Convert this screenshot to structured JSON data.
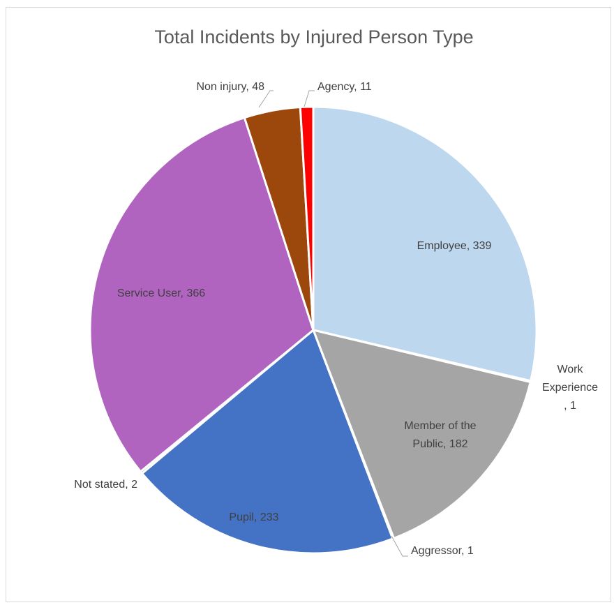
{
  "chart_data": {
    "type": "pie",
    "title": "Total Incidents by Injured Person Type",
    "slices": [
      {
        "name": "Employee",
        "value": 339,
        "color": "#BDD7EE",
        "label_lines": [
          "Employee, 339"
        ]
      },
      {
        "name": "Work Experience",
        "value": 1,
        "color": "#ED7D31",
        "label_lines": [
          "Work",
          "Experience",
          ", 1"
        ]
      },
      {
        "name": "Member of the Public",
        "value": 182,
        "color": "#A5A5A5",
        "label_lines": [
          "Member of the",
          "Public, 182"
        ]
      },
      {
        "name": "Aggressor",
        "value": 1,
        "color": "#FFC000",
        "label_lines": [
          "Aggressor, 1"
        ]
      },
      {
        "name": "Pupil",
        "value": 233,
        "color": "#4472C4",
        "label_lines": [
          "Pupil, 233"
        ]
      },
      {
        "name": "Not stated",
        "value": 2,
        "color": "#70AD47",
        "label_lines": [
          "Not stated, 2"
        ]
      },
      {
        "name": "Service User",
        "value": 366,
        "color": "#B064C0",
        "label_lines": [
          "Service User, 366"
        ]
      },
      {
        "name": "Non injury",
        "value": 48,
        "color": "#9C470C",
        "label_lines": [
          "Non injury, 48"
        ]
      },
      {
        "name": "Agency",
        "value": 11,
        "color": "#FF0000",
        "label_lines": [
          "Agency, 11"
        ]
      }
    ],
    "start_angle": "12 o'clock",
    "direction": "clockwise",
    "data_labels": "category name and value",
    "legend": "none"
  }
}
